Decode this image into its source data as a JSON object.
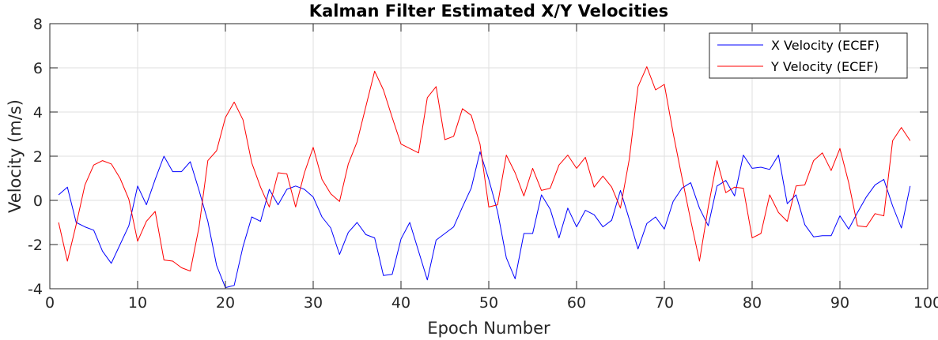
{
  "chart_data": {
    "type": "line",
    "title": "Kalman Filter Estimated X/Y Velocities",
    "xlabel": "Epoch Number",
    "ylabel": "Velocity (m/s)",
    "xlim": [
      0,
      100
    ],
    "ylim": [
      -4,
      8
    ],
    "xticks": [
      0,
      10,
      20,
      30,
      40,
      50,
      60,
      70,
      80,
      90,
      100
    ],
    "yticks": [
      -4,
      -2,
      0,
      2,
      4,
      6,
      8
    ],
    "grid": true,
    "legend_position": "top-right",
    "x": [
      1,
      2,
      3,
      4,
      5,
      6,
      7,
      8,
      9,
      10,
      11,
      12,
      13,
      14,
      15,
      16,
      17,
      18,
      19,
      20,
      21,
      22,
      23,
      24,
      25,
      26,
      27,
      28,
      29,
      30,
      31,
      32,
      33,
      34,
      35,
      36,
      37,
      38,
      39,
      40,
      41,
      42,
      43,
      44,
      45,
      46,
      47,
      48,
      49,
      50,
      51,
      52,
      53,
      54,
      55,
      56,
      57,
      58,
      59,
      60,
      61,
      62,
      63,
      64,
      65,
      66,
      67,
      68,
      69,
      70,
      71,
      72,
      73,
      74,
      75,
      76,
      77,
      78,
      79,
      80,
      81,
      82,
      83,
      84,
      85,
      86,
      87,
      88,
      89,
      90,
      91,
      92,
      93,
      94,
      95,
      96,
      97,
      98
    ],
    "series": [
      {
        "name": "X Velocity (ECEF)",
        "color": "#0000ff",
        "values": [
          0.25,
          0.6,
          -1.0,
          -1.2,
          -1.35,
          -2.3,
          -2.85,
          -2.0,
          -1.15,
          0.65,
          -0.2,
          0.95,
          2.0,
          1.3,
          1.3,
          1.75,
          0.45,
          -0.95,
          -2.95,
          -3.95,
          -3.85,
          -2.1,
          -0.75,
          -0.95,
          0.5,
          -0.2,
          0.5,
          0.65,
          0.5,
          0.15,
          -0.75,
          -1.25,
          -2.45,
          -1.45,
          -1.0,
          -1.55,
          -1.7,
          -3.4,
          -3.35,
          -1.75,
          -1.0,
          -2.3,
          -3.6,
          -1.8,
          -1.5,
          -1.2,
          -0.3,
          0.55,
          2.2,
          0.95,
          -0.5,
          -2.6,
          -3.55,
          -1.5,
          -1.5,
          0.25,
          -0.4,
          -1.7,
          -0.35,
          -1.2,
          -0.45,
          -0.65,
          -1.2,
          -0.9,
          0.45,
          -0.85,
          -2.2,
          -1.05,
          -0.75,
          -1.3,
          -0.05,
          0.55,
          0.8,
          -0.35,
          -1.15,
          0.65,
          0.9,
          0.2,
          2.05,
          1.45,
          1.5,
          1.4,
          2.05,
          -0.15,
          0.25,
          -1.1,
          -1.65,
          -1.6,
          -1.6,
          -0.7,
          -1.3,
          -0.55,
          0.15,
          0.7,
          0.95,
          -0.25,
          -1.25,
          0.65
        ]
      },
      {
        "name": "Y Velocity (ECEF)",
        "color": "#ff0000",
        "values": [
          -1.0,
          -2.75,
          -1.1,
          0.7,
          1.6,
          1.8,
          1.65,
          1.0,
          0.05,
          -1.85,
          -0.95,
          -0.5,
          -2.7,
          -2.75,
          -3.05,
          -3.2,
          -1.2,
          1.8,
          2.25,
          3.75,
          4.45,
          3.65,
          1.7,
          0.6,
          -0.3,
          1.25,
          1.2,
          -0.3,
          1.25,
          2.4,
          0.95,
          0.3,
          -0.05,
          1.65,
          2.65,
          4.25,
          5.85,
          5.0,
          3.75,
          2.55,
          2.35,
          2.15,
          4.65,
          5.15,
          2.75,
          2.9,
          4.15,
          3.85,
          2.55,
          -0.3,
          -0.2,
          2.05,
          1.25,
          0.2,
          1.45,
          0.45,
          0.55,
          1.6,
          2.05,
          1.45,
          1.95,
          0.6,
          1.1,
          0.6,
          -0.35,
          1.85,
          5.15,
          6.05,
          5.0,
          5.25,
          3.05,
          1.05,
          -0.9,
          -2.75,
          -0.3,
          1.8,
          0.35,
          0.6,
          0.55,
          -1.7,
          -1.5,
          0.25,
          -0.55,
          -0.95,
          0.65,
          0.7,
          1.8,
          2.15,
          1.35,
          2.35,
          0.8,
          -1.15,
          -1.2,
          -0.6,
          -0.7,
          2.7,
          3.3,
          2.7
        ]
      }
    ]
  }
}
